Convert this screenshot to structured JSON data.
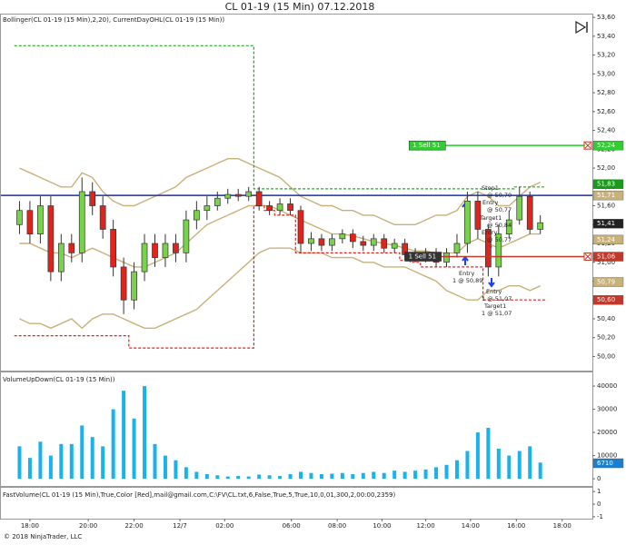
{
  "title": "CL 01-19 (15 Min)  07.12.2018",
  "footer": "© 2018 NinjaTrader, LLC",
  "annotations": [
    "Stop1",
    "@ 50,70",
    "Entry",
    "@ 50,77",
    "Target1",
    "@ 50,84",
    "Entry",
    "@ 50,77",
    "Entry",
    "1 @ 50,89",
    "Entry",
    "1 @ 51,07",
    "Target1",
    "1 @ 51,07"
  ],
  "chart_data": [
    {
      "type": "candlestick",
      "label": "Bollinger(CL 01-19 (15 Min),2,20), CurrentDayOHL(CL 01-19 (15 Min))",
      "xlim": [
        -1,
        55
      ],
      "xticks": [
        {
          "value": 1.0,
          "label": "18:00"
        },
        {
          "value": 6.6,
          "label": "20:00"
        },
        {
          "value": 11.0,
          "label": "22:00"
        },
        {
          "value": 15.4,
          "label": "12/7"
        },
        {
          "value": 19.7,
          "label": "02:00"
        },
        {
          "value": 26.1,
          "label": "06:00"
        },
        {
          "value": 30.5,
          "label": "08:00"
        },
        {
          "value": 34.8,
          "label": "10:00"
        },
        {
          "value": 39.0,
          "label": "12:00"
        },
        {
          "value": 43.3,
          "label": "14:00"
        },
        {
          "value": 47.7,
          "label": "16:00"
        },
        {
          "value": 52.1,
          "label": "18:00"
        }
      ],
      "ylim": [
        49.85,
        53.64
      ],
      "yticks": [
        {
          "value": 53.6,
          "label": "53,60"
        },
        {
          "value": 53.4,
          "label": "53,40"
        },
        {
          "value": 53.2,
          "label": "53,20"
        },
        {
          "value": 53.0,
          "label": "53,00"
        },
        {
          "value": 52.8,
          "label": "52,80"
        },
        {
          "value": 52.6,
          "label": "52,60"
        },
        {
          "value": 52.4,
          "label": "52,40"
        },
        {
          "value": 52.2,
          "label": "52,20"
        },
        {
          "value": 52.0,
          "label": "52,00"
        },
        {
          "value": 51.8,
          "label": "51,80"
        },
        {
          "value": 51.6,
          "label": "51,60"
        },
        {
          "value": 51.4,
          "label": "51,40"
        },
        {
          "value": 51.2,
          "label": "51,20"
        },
        {
          "value": 51.0,
          "label": "51,00"
        },
        {
          "value": 50.8,
          "label": "50,80"
        },
        {
          "value": 50.6,
          "label": "50,60"
        },
        {
          "value": 50.4,
          "label": "50,40"
        },
        {
          "value": 50.2,
          "label": "50,20"
        },
        {
          "value": 50.0,
          "label": "50,00"
        }
      ],
      "up_color": "#78d24b",
      "down_color": "#e0241b",
      "open": [
        51.4,
        51.55,
        51.3,
        51.6,
        50.9,
        51.2,
        51.1,
        51.75,
        51.6,
        51.35,
        50.95,
        50.6,
        50.9,
        51.2,
        51.05,
        51.2,
        51.1,
        51.45,
        51.55,
        51.6,
        51.68,
        51.72,
        51.7,
        51.75,
        51.6,
        51.55,
        51.62,
        51.55,
        51.2,
        51.25,
        51.18,
        51.25,
        51.3,
        51.22,
        51.18,
        51.25,
        51.15,
        51.2,
        51.08,
        51.05,
        51.1,
        51.0,
        51.1,
        51.2,
        51.65,
        51.35,
        50.95,
        51.3,
        51.45,
        51.7,
        51.35
      ],
      "high": [
        51.65,
        51.65,
        51.7,
        51.7,
        51.3,
        51.3,
        51.9,
        51.85,
        51.7,
        51.45,
        51.05,
        51.0,
        51.3,
        51.3,
        51.3,
        51.3,
        51.55,
        51.65,
        51.7,
        51.75,
        51.78,
        51.78,
        51.8,
        51.8,
        51.65,
        51.68,
        51.68,
        51.6,
        51.32,
        51.3,
        51.3,
        51.35,
        51.35,
        51.28,
        51.3,
        51.3,
        51.25,
        51.25,
        51.15,
        51.15,
        51.15,
        51.15,
        51.3,
        51.75,
        51.75,
        51.4,
        51.4,
        51.55,
        51.8,
        51.75,
        51.5
      ],
      "low": [
        51.3,
        51.2,
        51.2,
        50.8,
        50.8,
        51.0,
        51.0,
        51.5,
        51.25,
        50.85,
        50.45,
        50.5,
        50.8,
        50.95,
        50.95,
        51.0,
        51.0,
        51.35,
        51.45,
        51.55,
        51.62,
        51.65,
        51.65,
        51.55,
        51.5,
        51.5,
        51.5,
        51.1,
        51.12,
        51.12,
        51.12,
        51.2,
        51.15,
        51.12,
        51.12,
        51.1,
        51.1,
        51.02,
        51.0,
        51.0,
        50.95,
        50.95,
        51.05,
        51.1,
        51.25,
        50.85,
        50.85,
        51.25,
        51.4,
        51.3,
        51.3
      ],
      "close": [
        51.55,
        51.3,
        51.6,
        50.9,
        51.2,
        51.1,
        51.75,
        51.6,
        51.35,
        50.95,
        50.6,
        50.9,
        51.2,
        51.05,
        51.2,
        51.1,
        51.45,
        51.55,
        51.6,
        51.68,
        51.72,
        51.7,
        51.75,
        51.6,
        51.55,
        51.62,
        51.55,
        51.2,
        51.25,
        51.18,
        51.25,
        51.3,
        51.22,
        51.18,
        51.25,
        51.15,
        51.2,
        51.08,
        51.05,
        51.1,
        51.0,
        51.1,
        51.2,
        51.65,
        51.35,
        50.95,
        51.3,
        51.45,
        51.7,
        51.35,
        51.42
      ],
      "bands": {
        "color": "#c8b27a",
        "upper": [
          52.0,
          51.95,
          51.9,
          51.85,
          51.8,
          51.8,
          51.95,
          51.9,
          51.75,
          51.65,
          51.6,
          51.6,
          51.65,
          51.7,
          51.75,
          51.8,
          51.9,
          51.95,
          52.0,
          52.05,
          52.1,
          52.1,
          52.05,
          52.0,
          51.95,
          51.9,
          51.8,
          51.7,
          51.65,
          51.6,
          51.6,
          51.55,
          51.55,
          51.5,
          51.5,
          51.45,
          51.4,
          51.4,
          51.4,
          51.45,
          51.5,
          51.5,
          51.55,
          51.7,
          51.75,
          51.7,
          51.6,
          51.6,
          51.7,
          51.8,
          51.85
        ],
        "middle": [
          51.2,
          51.2,
          51.15,
          51.1,
          51.1,
          51.05,
          51.1,
          51.15,
          51.1,
          51.05,
          51.0,
          50.95,
          50.95,
          51.0,
          51.05,
          51.1,
          51.2,
          51.3,
          51.4,
          51.45,
          51.5,
          51.55,
          51.6,
          51.6,
          51.6,
          51.55,
          51.5,
          51.45,
          51.4,
          51.35,
          51.3,
          51.3,
          51.28,
          51.25,
          51.22,
          51.2,
          51.18,
          51.15,
          51.12,
          51.12,
          51.1,
          51.1,
          51.1,
          51.2,
          51.25,
          51.2,
          51.15,
          51.2,
          51.25,
          51.3,
          51.3
        ],
        "lower": [
          50.4,
          50.35,
          50.35,
          50.3,
          50.35,
          50.4,
          50.3,
          50.4,
          50.45,
          50.45,
          50.4,
          50.35,
          50.3,
          50.3,
          50.35,
          50.4,
          50.45,
          50.5,
          50.6,
          50.7,
          50.8,
          50.9,
          51.0,
          51.1,
          51.15,
          51.15,
          51.15,
          51.1,
          51.1,
          51.1,
          51.05,
          51.05,
          51.05,
          51.0,
          51.0,
          50.95,
          50.95,
          50.95,
          50.9,
          50.85,
          50.8,
          50.7,
          50.65,
          50.6,
          50.6,
          50.7,
          50.7,
          50.75,
          50.75,
          50.7,
          50.75
        ]
      },
      "day_high_color": "#22aa22",
      "day_low_color": "#e02020",
      "day_high": [
        53.3,
        53.3,
        53.3,
        53.3,
        53.3,
        53.3,
        53.3,
        53.3,
        53.3,
        53.3,
        53.3,
        53.3,
        53.3,
        53.3,
        53.3,
        53.3,
        53.3,
        53.3,
        53.3,
        53.3,
        53.3,
        53.3,
        53.3,
        51.78,
        51.78,
        51.78,
        51.78,
        51.78,
        51.78,
        51.78,
        51.78,
        51.78,
        51.78,
        51.78,
        51.78,
        51.78,
        51.78,
        51.78,
        51.78,
        51.78,
        51.78,
        51.78,
        51.78,
        51.78,
        51.78,
        51.78,
        51.78,
        51.78,
        51.8,
        51.8,
        51.8
      ],
      "day_low": [
        50.22,
        50.22,
        50.22,
        50.22,
        50.22,
        50.22,
        50.22,
        50.22,
        50.22,
        50.22,
        50.22,
        50.09,
        50.09,
        50.09,
        50.09,
        50.09,
        50.09,
        50.09,
        50.09,
        50.09,
        50.09,
        50.09,
        50.09,
        51.6,
        51.55,
        51.5,
        51.5,
        51.1,
        51.1,
        51.1,
        51.1,
        51.1,
        51.1,
        51.1,
        51.1,
        51.1,
        51.1,
        51.02,
        51.0,
        50.95,
        50.95,
        50.95,
        50.95,
        50.95,
        50.95,
        50.6,
        50.6,
        50.6,
        50.6,
        50.6,
        50.6
      ],
      "hlines": [
        {
          "value": 51.71,
          "color": "#1c2fa8"
        }
      ],
      "orders": [
        {
          "label": "1 Sell 51",
          "value": 52.24,
          "x_start": 37.4,
          "color": "#22cc22"
        },
        {
          "label": "1 Sell 51",
          "value": 51.06,
          "x_start": 37.0,
          "color": "#c0392b"
        }
      ],
      "markers": [
        {
          "value": 52.24,
          "label": "52,24",
          "color": "#33cc33"
        },
        {
          "value": 51.83,
          "label": "51,83",
          "color": "#1a9a1a"
        },
        {
          "value": 51.71,
          "label": "51,71",
          "color": "#c8b27a"
        },
        {
          "value": 51.41,
          "label": "51,41",
          "color": "#222222"
        },
        {
          "value": 51.24,
          "label": "51,24",
          "color": "#c8b27a"
        },
        {
          "value": 51.06,
          "label": "51,06",
          "color": "#c0392b"
        },
        {
          "value": 50.79,
          "label": "50,79",
          "color": "#c8b27a"
        },
        {
          "value": 50.6,
          "label": "50,60",
          "color": "#c0392b"
        }
      ]
    },
    {
      "type": "bar",
      "label": "VolumeUpDown(CL 01-19 (15 Min))",
      "color": "#1ab2ea",
      "ylim": [
        -3100,
        45900
      ],
      "yticks": [
        40000,
        30000,
        20000,
        10000,
        0
      ],
      "values": [
        14000,
        9000,
        16000,
        10000,
        15000,
        15000,
        23000,
        18000,
        14000,
        30000,
        38000,
        26000,
        40000,
        15000,
        10000,
        8000,
        5000,
        3000,
        2000,
        1500,
        1000,
        1200,
        1000,
        1800,
        1500,
        1200,
        2000,
        3000,
        2500,
        2000,
        2200,
        2500,
        2000,
        2500,
        3000,
        2500,
        3500,
        3000,
        3500,
        4000,
        5000,
        6000,
        8000,
        12000,
        20000,
        22000,
        13000,
        10000,
        12000,
        14000,
        7000
      ],
      "markers": [
        {
          "value": 6710,
          "label": "6710",
          "color": "#1a7fd0"
        }
      ]
    },
    {
      "type": "line",
      "label": "FastVolume(CL 01-19 (15 Min),True,Color [Red],mail@gmail.com,C:\\FV\\CL.txt,6,False,True,5,True,10,0,01,300,2,00:00,2359)",
      "ylim": [
        -1.15,
        1.3
      ],
      "yticks": [
        1,
        0,
        -1
      ]
    }
  ]
}
